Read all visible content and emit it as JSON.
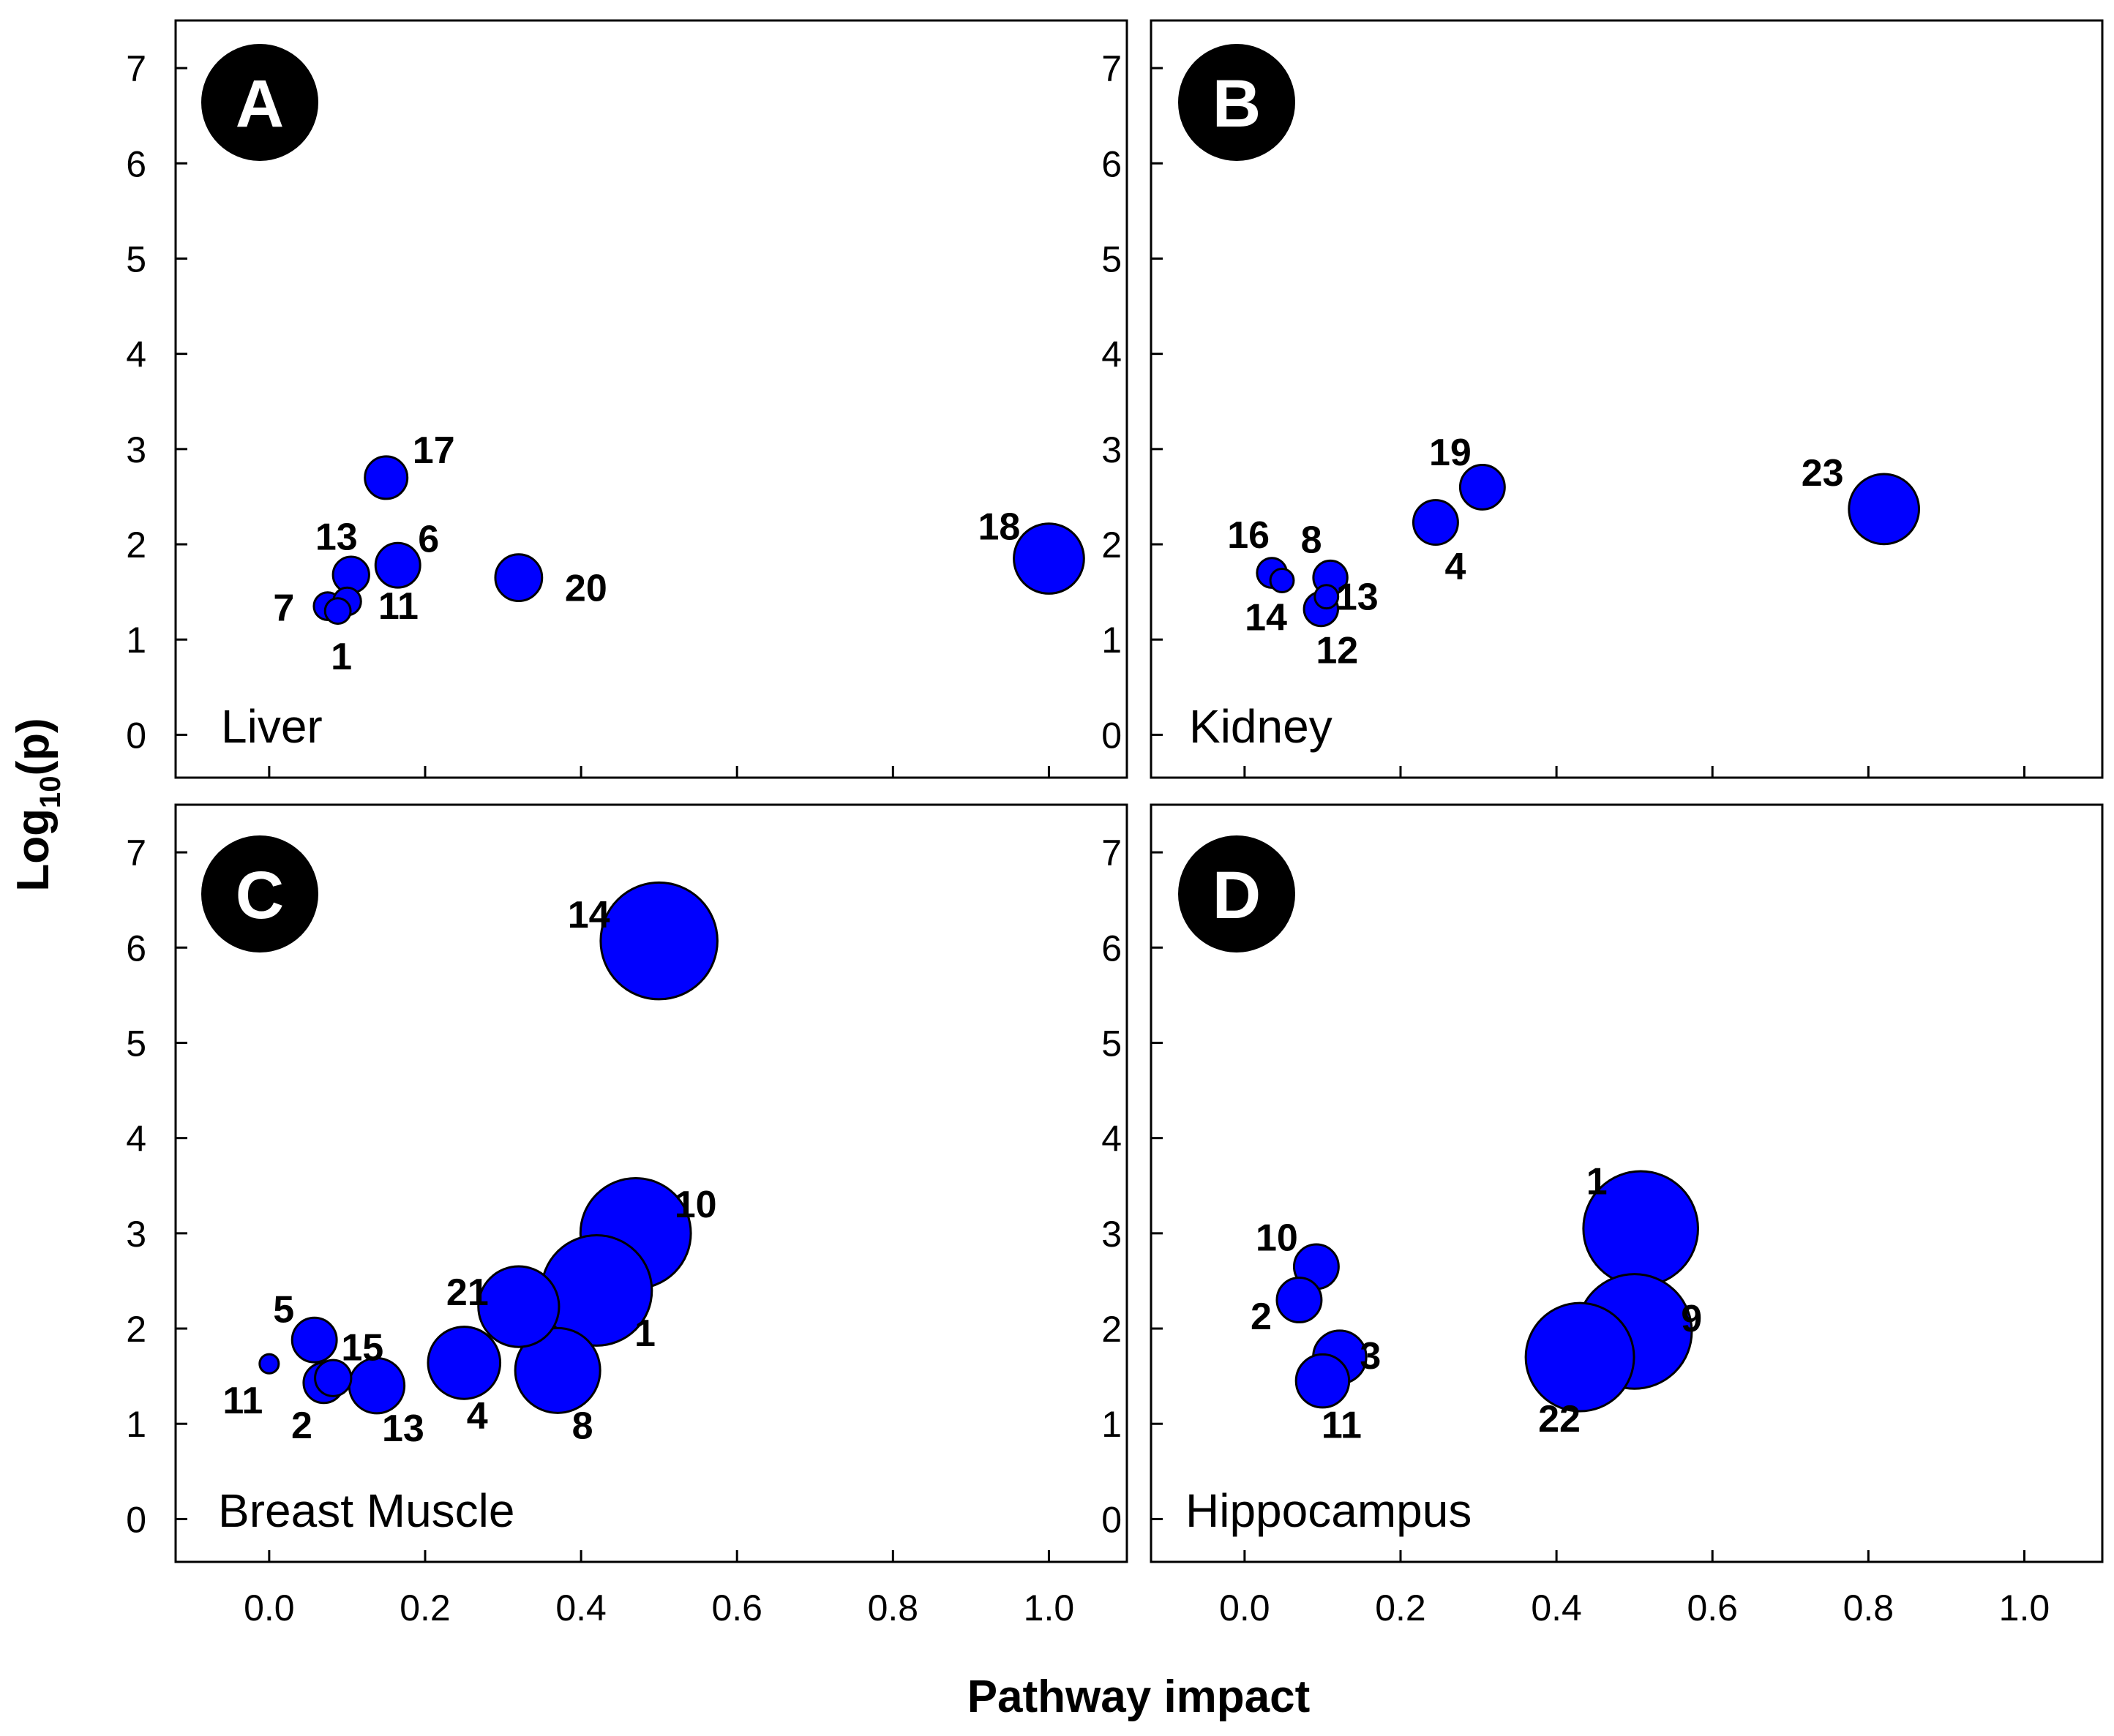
{
  "figure": {
    "xlabel": "Pathway impact",
    "ylabel_main": "Log",
    "ylabel_sub": "10",
    "ylabel_tail": "(p)",
    "x_tick_labels": [
      "0.0",
      "0.2",
      "0.4",
      "0.6",
      "0.8",
      "1.0"
    ],
    "y_tick_labels": [
      "0",
      "1",
      "2",
      "3",
      "4",
      "5",
      "6",
      "7"
    ],
    "bubble_color": "#0000ff"
  },
  "chart_data": [
    {
      "type": "scatter",
      "panel": "A",
      "tissue": "Liver",
      "xlim": [
        -0.12,
        1.1
      ],
      "ylim": [
        -0.45,
        7.5
      ],
      "points": [
        {
          "id": "17",
          "x": 0.15,
          "y": 2.7,
          "size": 1.0
        },
        {
          "id": "13",
          "x": 0.105,
          "y": 1.68,
          "size": 0.85
        },
        {
          "id": "6",
          "x": 0.165,
          "y": 1.78,
          "size": 1.05
        },
        {
          "id": "7",
          "x": 0.075,
          "y": 1.35,
          "size": 0.65
        },
        {
          "id": "11",
          "x": 0.1,
          "y": 1.4,
          "size": 0.65
        },
        {
          "id": "1",
          "x": 0.088,
          "y": 1.3,
          "size": 0.6
        },
        {
          "id": "20",
          "x": 0.32,
          "y": 1.65,
          "size": 1.1
        },
        {
          "id": "18",
          "x": 1.0,
          "y": 1.85,
          "size": 1.65
        }
      ]
    },
    {
      "type": "scatter",
      "panel": "B",
      "tissue": "Kidney",
      "xlim": [
        -0.12,
        1.1
      ],
      "ylim": [
        -0.45,
        7.5
      ],
      "points": [
        {
          "id": "19",
          "x": 0.305,
          "y": 2.6,
          "size": 1.05
        },
        {
          "id": "23",
          "x": 0.82,
          "y": 2.37,
          "size": 1.65
        },
        {
          "id": "4",
          "x": 0.245,
          "y": 2.23,
          "size": 1.05
        },
        {
          "id": "16",
          "x": 0.035,
          "y": 1.7,
          "size": 0.7
        },
        {
          "id": "14",
          "x": 0.048,
          "y": 1.62,
          "size": 0.55
        },
        {
          "id": "8",
          "x": 0.11,
          "y": 1.65,
          "size": 0.8
        },
        {
          "id": "13",
          "x": 0.105,
          "y": 1.45,
          "size": 0.55
        },
        {
          "id": "12",
          "x": 0.098,
          "y": 1.32,
          "size": 0.8
        }
      ]
    },
    {
      "type": "scatter",
      "panel": "C",
      "tissue": "Breast Muscle",
      "xlim": [
        -0.12,
        1.1
      ],
      "ylim": [
        -0.45,
        7.5
      ],
      "points": [
        {
          "id": "14",
          "x": 0.5,
          "y": 6.07,
          "size": 2.75
        },
        {
          "id": "10",
          "x": 0.47,
          "y": 3.0,
          "size": 2.6
        },
        {
          "id": "1",
          "x": 0.42,
          "y": 2.4,
          "size": 2.6
        },
        {
          "id": "21",
          "x": 0.32,
          "y": 2.23,
          "size": 1.9
        },
        {
          "id": "8",
          "x": 0.37,
          "y": 1.56,
          "size": 2.0
        },
        {
          "id": "4",
          "x": 0.25,
          "y": 1.64,
          "size": 1.7
        },
        {
          "id": "5",
          "x": 0.058,
          "y": 1.88,
          "size": 1.05
        },
        {
          "id": "15",
          "x": 0.082,
          "y": 1.48,
          "size": 0.85
        },
        {
          "id": "2",
          "x": 0.07,
          "y": 1.43,
          "size": 0.95
        },
        {
          "id": "13",
          "x": 0.138,
          "y": 1.4,
          "size": 1.3
        },
        {
          "id": "11",
          "x": 0.0,
          "y": 1.63,
          "size": 0.45
        }
      ]
    },
    {
      "type": "scatter",
      "panel": "D",
      "tissue": "Hippocampus",
      "xlim": [
        -0.12,
        1.1
      ],
      "ylim": [
        -0.45,
        7.5
      ],
      "points": [
        {
          "id": "1",
          "x": 0.508,
          "y": 3.05,
          "size": 2.7
        },
        {
          "id": "9",
          "x": 0.5,
          "y": 1.97,
          "size": 2.7
        },
        {
          "id": "22",
          "x": 0.43,
          "y": 1.7,
          "size": 2.55
        },
        {
          "id": "10",
          "x": 0.092,
          "y": 2.65,
          "size": 1.05
        },
        {
          "id": "2",
          "x": 0.07,
          "y": 2.3,
          "size": 1.05
        },
        {
          "id": "3",
          "x": 0.122,
          "y": 1.7,
          "size": 1.25
        },
        {
          "id": "11",
          "x": 0.1,
          "y": 1.45,
          "size": 1.25
        }
      ]
    }
  ]
}
